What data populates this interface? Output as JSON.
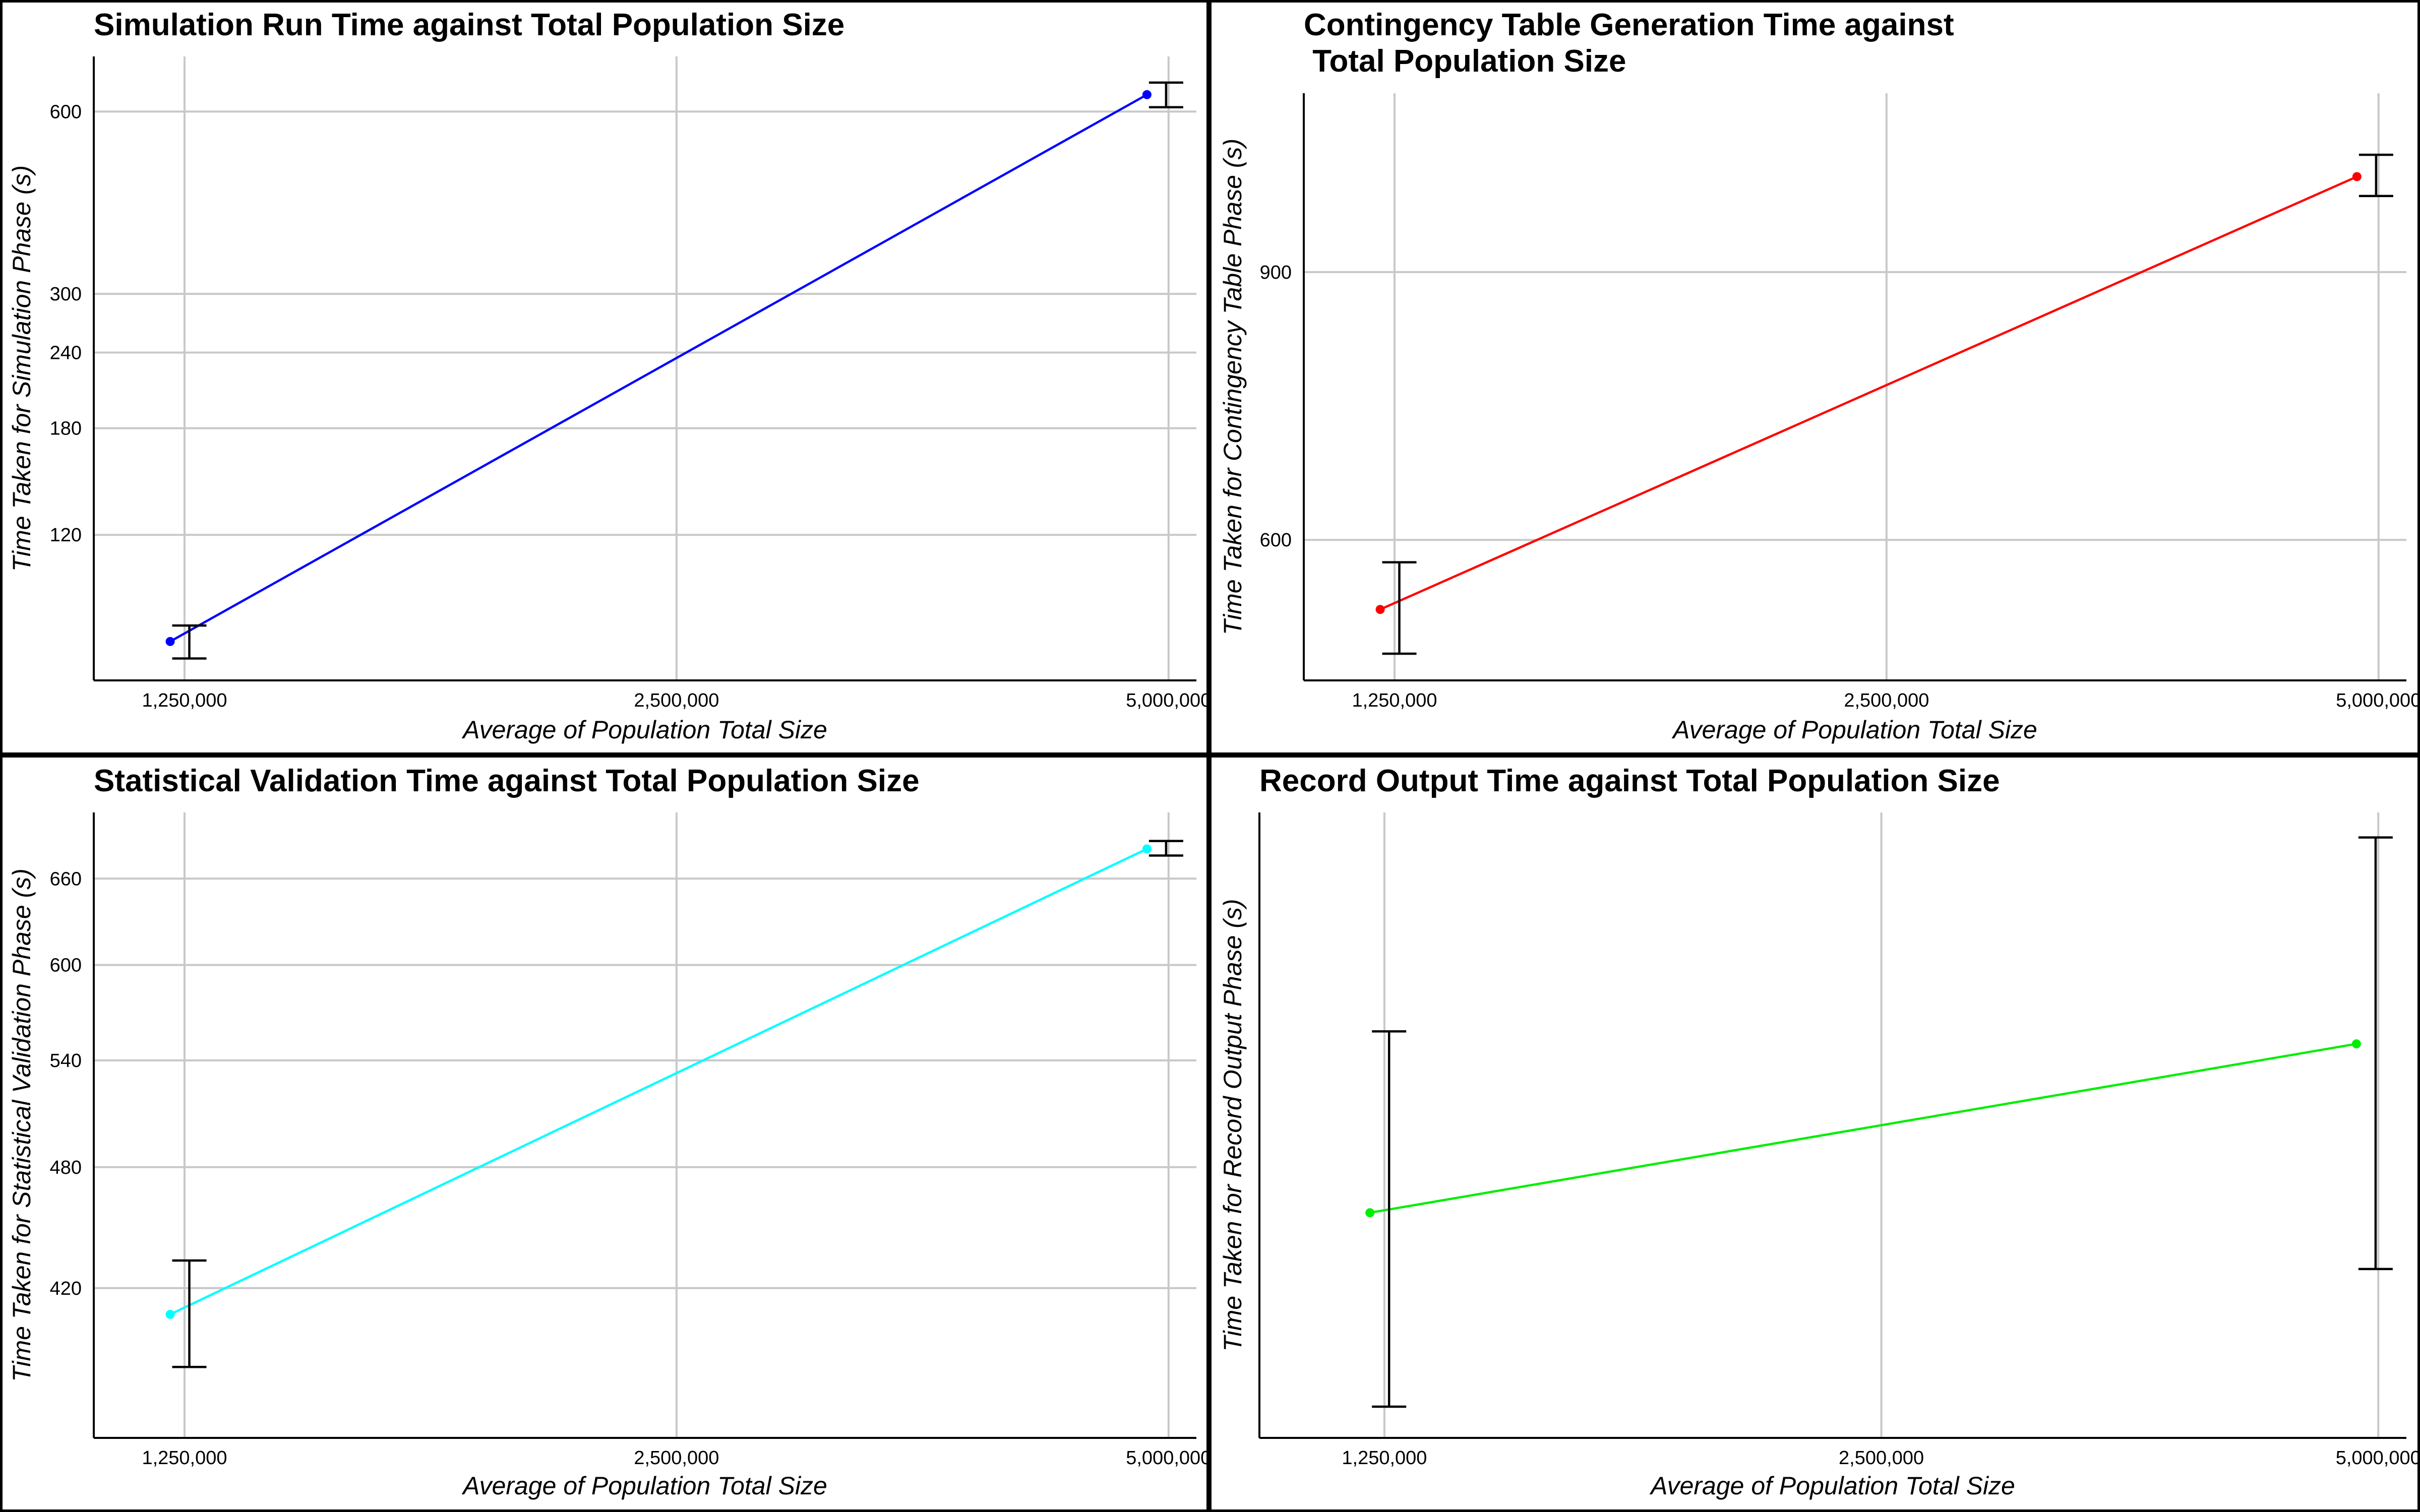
{
  "chart_data": [
    {
      "type": "line",
      "title": [
        "Simulation Run Time against Total Population Size"
      ],
      "xlabel": "Average of Population Total Size",
      "ylabel": "Time Taken for Simulation Phase (s)",
      "xticks": [
        1250000,
        2500000,
        5000000
      ],
      "xtick_labels": [
        "1,250,000",
        "2,500,000",
        "5,000,000"
      ],
      "x_scale": "log",
      "xlim": [
        1100000,
        5200000
      ],
      "y_scale": "log",
      "yticks": [
        120,
        180,
        240,
        300,
        600
      ],
      "ylim": [
        69,
        740
      ],
      "grid": true,
      "color": "#0000ff",
      "series": [
        {
          "x": [
            1225000,
            4850000
          ],
          "y": [
            80,
            640
          ],
          "err_low": [
            75,
            610
          ],
          "err_high": [
            85,
            670
          ]
        }
      ]
    },
    {
      "type": "line",
      "title": [
        "Contingency Table Generation Time against",
        " Total Population Size"
      ],
      "xlabel": "Average of Population Total Size",
      "ylabel": "Time Taken for Contingency Table Phase (s)",
      "xticks": [
        1250000,
        2500000,
        5000000
      ],
      "xtick_labels": [
        "1,250,000",
        "2,500,000",
        "5,000,000"
      ],
      "x_scale": "log",
      "xlim": [
        1100000,
        5200000
      ],
      "y_scale": "log",
      "yticks": [
        600,
        900
      ],
      "ylim": [
        485,
        1180
      ],
      "grid": true,
      "color": "#ff0000",
      "series": [
        {
          "x": [
            1225000,
            4850000
          ],
          "y": [
            540,
            1040
          ],
          "err_low": [
            505,
            1010
          ],
          "err_high": [
            580,
            1075
          ]
        }
      ]
    },
    {
      "type": "line",
      "title": [
        "Statistical Validation Time against Total Population Size"
      ],
      "xlabel": "Average of Population Total Size",
      "ylabel": "Time Taken for Statistical Validation Phase (s)",
      "xticks": [
        1250000,
        2500000,
        5000000
      ],
      "xtick_labels": [
        "1,250,000",
        "2,500,000",
        "5,000,000"
      ],
      "x_scale": "log",
      "xlim": [
        1100000,
        5200000
      ],
      "y_scale": "log",
      "yticks": [
        420,
        480,
        540,
        600,
        660
      ],
      "ylim": [
        356,
        710
      ],
      "grid": true,
      "color": "#00ffff",
      "series": [
        {
          "x": [
            1225000,
            4850000
          ],
          "y": [
            408,
            682
          ],
          "err_low": [
            385,
            677
          ],
          "err_high": [
            433,
            688
          ]
        }
      ]
    },
    {
      "type": "line",
      "title": [
        "Record Output Time against Total Population Size"
      ],
      "xlabel": "Average of Population Total Size",
      "ylabel": "Time Taken for Record Output Phase (s)",
      "xticks": [
        1250000,
        2500000,
        5000000
      ],
      "xtick_labels": [
        "1,250,000",
        "2,500,000",
        "5,000,000"
      ],
      "x_scale": "log",
      "xlim": [
        1050000,
        5200000
      ],
      "yticks": [],
      "ylim": [
        0,
        100
      ],
      "grid": true,
      "color": "#00ee00",
      "series": [
        {
          "x": [
            1225000,
            4850000
          ],
          "y": [
            36,
            63
          ],
          "err_low": [
            5,
            27
          ],
          "err_high": [
            65,
            96
          ]
        }
      ]
    }
  ]
}
